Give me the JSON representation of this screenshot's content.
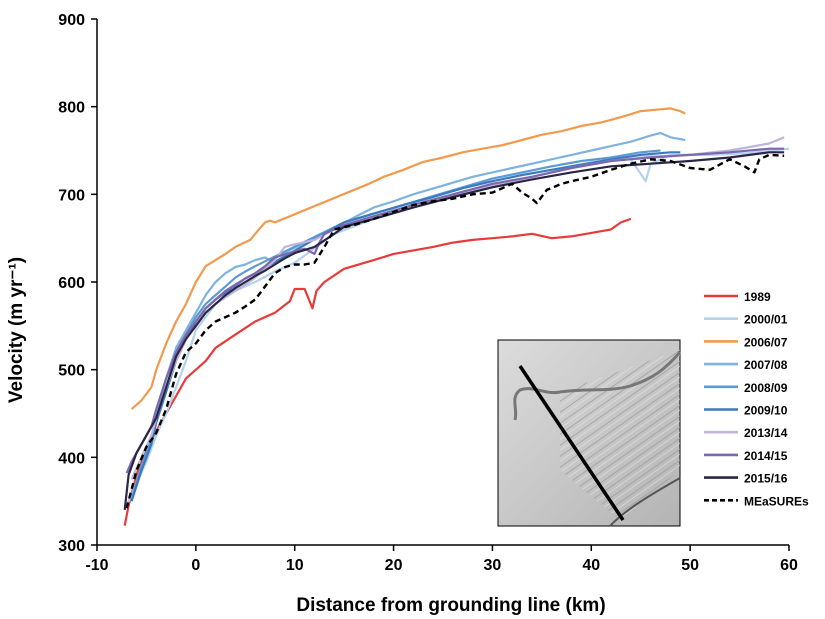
{
  "chart_data": {
    "type": "line",
    "xlabel": "Distance from grounding line (km)",
    "ylabel": "Velocity (m yr⁻¹)",
    "xlim": [
      -10,
      60
    ],
    "ylim": [
      300,
      900
    ],
    "xticks": [
      -10,
      0,
      10,
      20,
      30,
      40,
      50,
      60
    ],
    "yticks": [
      300,
      400,
      500,
      600,
      700,
      800,
      900
    ],
    "grid": false,
    "legend_position": "right",
    "inset": "satellite image with black profile line crossing the glacier",
    "series": [
      {
        "name": "1989",
        "color": "#e83a3a",
        "dashed": false,
        "x": [
          -7.2,
          -6.8,
          -6,
          -5,
          -4,
          -3,
          -2,
          -1,
          0,
          1,
          2,
          4,
          6,
          8,
          9.5,
          10,
          11,
          11.8,
          12.2,
          13,
          15,
          18,
          20,
          22,
          24,
          26,
          28,
          30,
          32,
          34,
          36,
          38,
          40,
          42,
          43,
          44
        ],
        "y": [
          322,
          345,
          380,
          410,
          430,
          450,
          470,
          490,
          500,
          510,
          525,
          540,
          555,
          565,
          578,
          592,
          592,
          570,
          590,
          600,
          615,
          625,
          632,
          636,
          640,
          645,
          648,
          650,
          652,
          655,
          650,
          652,
          656,
          660,
          668,
          672
        ]
      },
      {
        "name": "2000/01",
        "color": "#b4d2ee",
        "dashed": false,
        "x": [
          -7,
          -6,
          -5,
          -4,
          -3,
          -2,
          -1,
          0,
          2,
          4,
          6,
          8,
          10,
          14,
          18,
          22,
          26,
          30,
          34,
          38,
          42,
          44,
          45.5,
          46,
          48,
          52,
          56,
          60
        ],
        "y": [
          345,
          370,
          395,
          425,
          450,
          480,
          510,
          545,
          575,
          590,
          600,
          612,
          622,
          655,
          672,
          685,
          697,
          710,
          720,
          730,
          740,
          740,
          715,
          735,
          745,
          745,
          747,
          752
        ]
      },
      {
        "name": "2006/07",
        "color": "#f19a4e",
        "dashed": false,
        "x": [
          -6.5,
          -5.5,
          -4.5,
          -4,
          -3,
          -2,
          -1,
          0,
          1,
          2,
          3,
          4,
          5.5,
          6,
          7,
          7.5,
          8,
          17.5,
          19,
          21,
          23,
          25,
          27,
          29,
          31,
          33,
          35,
          37,
          39,
          41,
          43,
          45,
          47,
          48,
          49,
          49.5
        ],
        "y": [
          455,
          465,
          480,
          500,
          530,
          555,
          575,
          600,
          618,
          625,
          632,
          640,
          648,
          655,
          668,
          670,
          668,
          712,
          720,
          728,
          737,
          742,
          748,
          752,
          756,
          762,
          768,
          772,
          778,
          782,
          788,
          795,
          797,
          798,
          795,
          792
        ]
      },
      {
        "name": "2007/08",
        "color": "#7fb3df",
        "dashed": false,
        "x": [
          -6.5,
          -5.5,
          -4.5,
          -4,
          -3,
          -2,
          -1,
          0,
          1,
          2,
          3,
          4,
          5,
          6,
          7,
          7.5,
          18,
          20,
          22,
          25,
          28,
          30,
          32,
          34,
          36,
          38,
          40,
          42,
          44,
          46,
          47,
          48,
          49.5
        ],
        "y": [
          355,
          390,
          420,
          450,
          490,
          525,
          545,
          565,
          585,
          600,
          610,
          617,
          620,
          625,
          628,
          625,
          685,
          692,
          700,
          710,
          720,
          725,
          730,
          735,
          740,
          745,
          750,
          755,
          760,
          767,
          770,
          765,
          762
        ]
      },
      {
        "name": "2008/09",
        "color": "#5a9bd4",
        "dashed": false,
        "x": [
          -6.5,
          -5.5,
          -4.5,
          -4,
          -3,
          -2,
          -1,
          0,
          1,
          2,
          3,
          4,
          5,
          6,
          15,
          18,
          21,
          24,
          27,
          30,
          33,
          36,
          39,
          42,
          45,
          47
        ],
        "y": [
          350,
          390,
          420,
          445,
          480,
          515,
          540,
          560,
          575,
          585,
          595,
          605,
          612,
          618,
          668,
          678,
          688,
          698,
          708,
          718,
          725,
          732,
          738,
          742,
          748,
          750
        ]
      },
      {
        "name": "2009/10",
        "color": "#3a7bc0",
        "dashed": false,
        "x": [
          -6.5,
          -5.5,
          -4.5,
          -4,
          -3,
          -2,
          -1,
          0,
          1,
          2,
          3,
          4,
          5,
          6,
          15,
          18,
          21,
          24,
          27,
          30,
          33,
          36,
          39,
          42,
          45,
          48,
          49
        ],
        "y": [
          350,
          385,
          415,
          440,
          475,
          510,
          535,
          555,
          570,
          580,
          588,
          596,
          604,
          610,
          668,
          678,
          688,
          697,
          707,
          715,
          722,
          728,
          734,
          740,
          745,
          748,
          748
        ]
      },
      {
        "name": "2013/14",
        "color": "#bfb5d8",
        "dashed": false,
        "x": [
          -6.5,
          -5.5,
          -4.5,
          -4,
          -3,
          -2,
          -1,
          0,
          1,
          2,
          3,
          4,
          5,
          6,
          7,
          8,
          9,
          10,
          12,
          14,
          18,
          22,
          26,
          30,
          34,
          38,
          42,
          46,
          50,
          54,
          58,
          59.5
        ],
        "y": [
          375,
          400,
          425,
          445,
          480,
          510,
          535,
          550,
          565,
          575,
          583,
          590,
          597,
          605,
          615,
          625,
          640,
          643,
          648,
          660,
          672,
          685,
          698,
          710,
          720,
          730,
          738,
          743,
          745,
          750,
          758,
          765
        ]
      },
      {
        "name": "2014/15",
        "color": "#7b68ae",
        "dashed": false,
        "x": [
          -7,
          -6.5,
          -5.5,
          -4.5,
          -4,
          -3,
          -2,
          -1,
          0,
          1,
          2,
          3,
          4,
          5,
          6,
          7,
          8,
          10,
          11,
          12,
          12.5,
          13,
          15,
          18,
          22,
          26,
          30,
          34,
          38,
          42,
          46,
          50,
          54,
          58,
          59.5
        ],
        "y": [
          382,
          395,
          415,
          435,
          455,
          490,
          520,
          540,
          555,
          570,
          580,
          590,
          597,
          604,
          610,
          618,
          628,
          635,
          638,
          632,
          645,
          655,
          665,
          675,
          688,
          700,
          712,
          720,
          730,
          738,
          742,
          745,
          748,
          752,
          752
        ]
      },
      {
        "name": "2015/16",
        "color": "#2c2646",
        "dashed": false,
        "x": [
          -7.2,
          -6.8,
          -6,
          -5,
          -4,
          -3,
          -2,
          -1,
          0,
          1,
          2,
          3,
          4,
          5,
          6,
          7,
          8,
          9,
          10,
          12,
          14,
          15,
          18,
          22,
          26,
          30,
          34,
          38,
          42,
          46,
          50,
          54,
          58,
          59.5
        ],
        "y": [
          340,
          380,
          405,
          425,
          445,
          480,
          515,
          535,
          550,
          565,
          575,
          585,
          593,
          600,
          607,
          613,
          620,
          627,
          633,
          640,
          655,
          663,
          672,
          685,
          697,
          708,
          717,
          725,
          732,
          735,
          738,
          742,
          748,
          748
        ]
      },
      {
        "name": "MEaSUREs",
        "color": "#000000",
        "dashed": true,
        "x": [
          -7,
          -6,
          -5,
          -4,
          -3,
          -2,
          -1,
          0,
          1,
          2,
          3,
          4,
          5,
          6,
          7,
          8,
          9,
          10,
          11,
          12,
          13,
          14,
          16,
          18,
          20,
          22,
          24,
          26,
          28,
          30,
          32,
          33,
          34,
          34.5,
          35.5,
          37,
          38,
          40,
          42,
          44,
          46,
          48,
          50,
          52,
          54,
          55.5,
          56.5,
          57,
          58,
          59.5
        ],
        "y": [
          342,
          385,
          412,
          428,
          455,
          495,
          520,
          530,
          545,
          555,
          560,
          565,
          572,
          580,
          595,
          610,
          617,
          620,
          620,
          622,
          640,
          660,
          665,
          672,
          680,
          688,
          692,
          695,
          700,
          702,
          712,
          702,
          695,
          690,
          705,
          712,
          715,
          720,
          728,
          735,
          740,
          738,
          730,
          728,
          740,
          732,
          725,
          740,
          745,
          744
        ]
      }
    ]
  }
}
